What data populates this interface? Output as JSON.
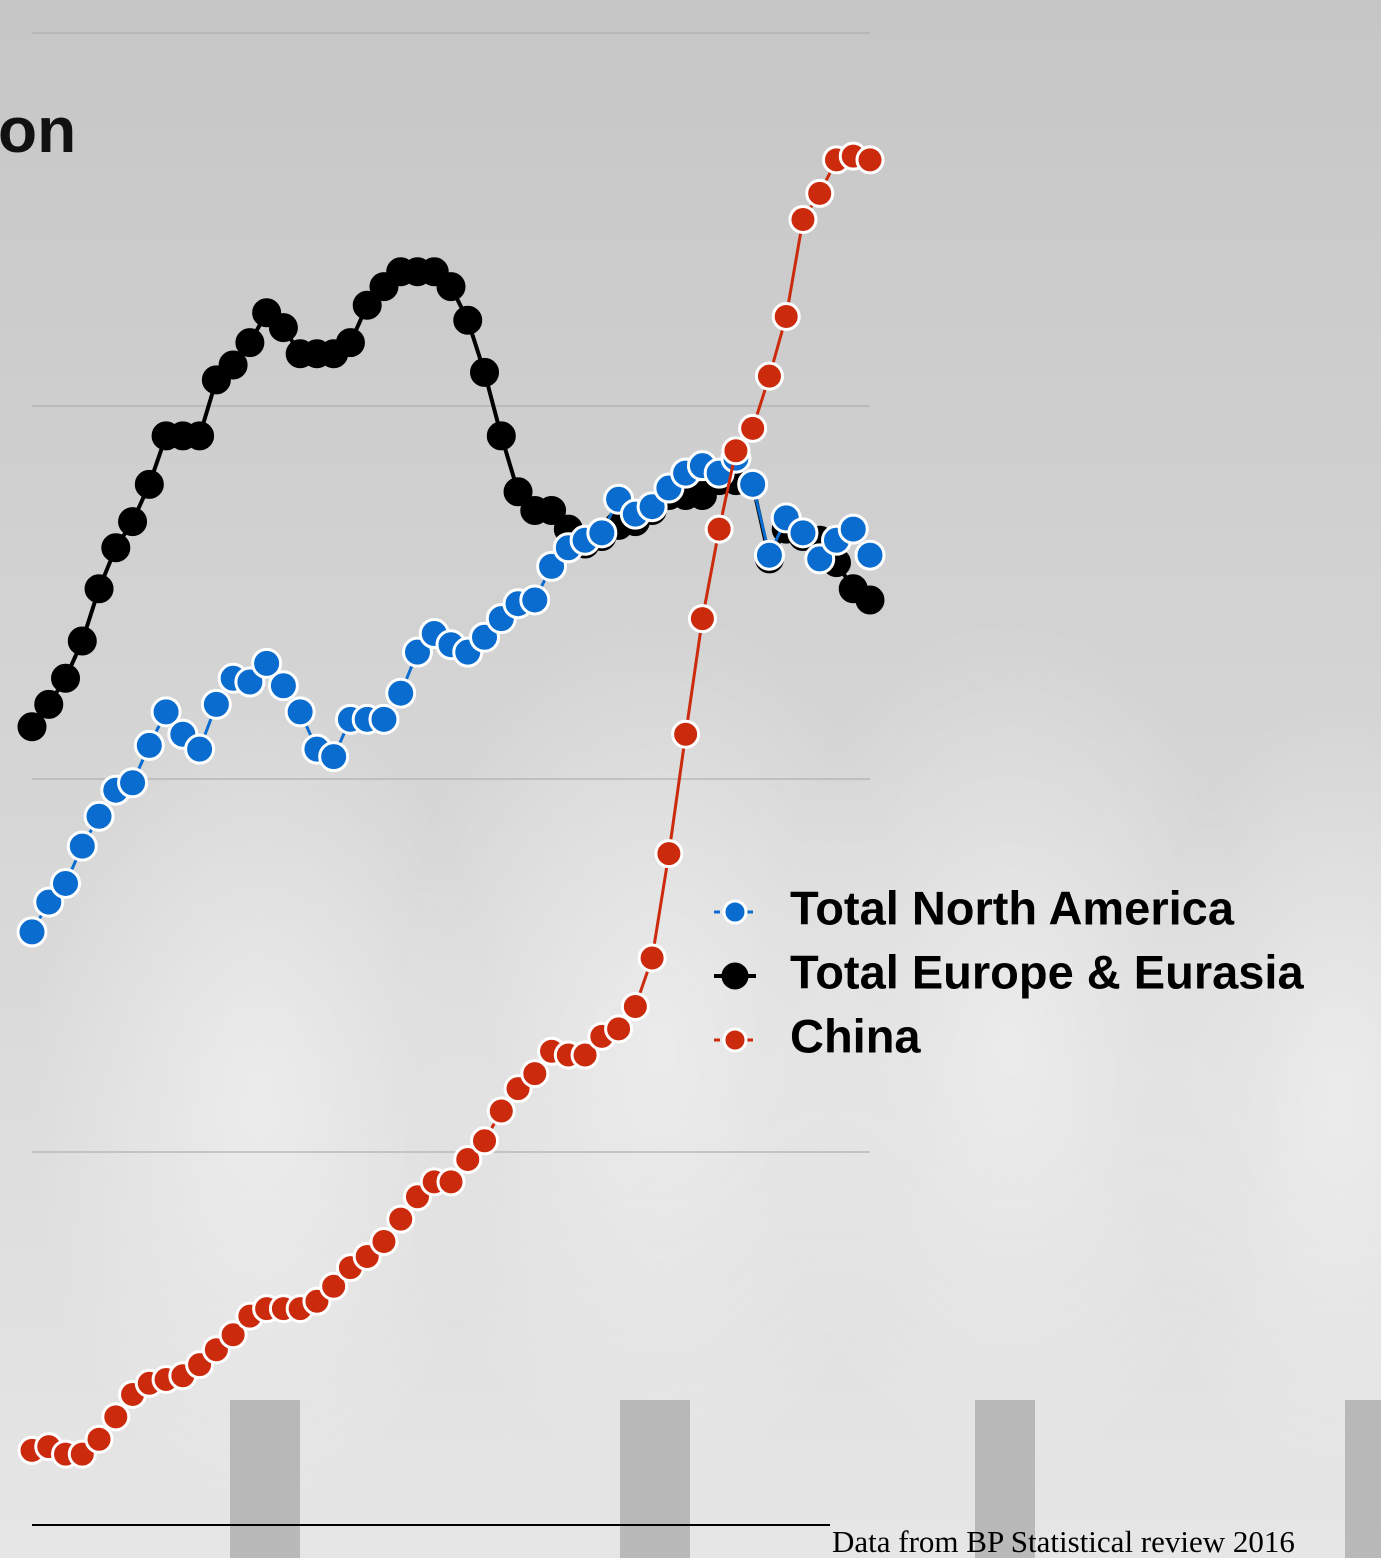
{
  "chart_data": {
    "type": "line",
    "title": "on",
    "source": "Data from BP Statistical review 2016",
    "categories": [
      null,
      null,
      null,
      null,
      null,
      null,
      null,
      null,
      null,
      null,
      null,
      null,
      null,
      null,
      null,
      null,
      null,
      null,
      null,
      null,
      null,
      null,
      null,
      null,
      null,
      null,
      null,
      null,
      null,
      null,
      null,
      null,
      null,
      null,
      null,
      null,
      null,
      null,
      null,
      null,
      null,
      null,
      null,
      null,
      null,
      null,
      null,
      null,
      null,
      null,
      null
    ],
    "ylim": [
      0,
      4
    ],
    "yticks": [
      0,
      1,
      2,
      3,
      4
    ],
    "grid": true,
    "series": [
      {
        "name": "Total North America",
        "color": "#0a6ccf",
        "values": [
          1.59,
          1.67,
          1.72,
          1.82,
          1.9,
          1.97,
          1.99,
          2.09,
          2.18,
          2.12,
          2.08,
          2.2,
          2.27,
          2.26,
          2.31,
          2.25,
          2.18,
          2.08,
          2.06,
          2.16,
          2.16,
          2.16,
          2.23,
          2.34,
          2.39,
          2.36,
          2.34,
          2.38,
          2.43,
          2.47,
          2.48,
          2.57,
          2.62,
          2.64,
          2.66,
          2.75,
          2.71,
          2.73,
          2.78,
          2.82,
          2.84,
          2.82,
          2.86,
          2.79,
          2.6,
          2.7,
          2.66,
          2.59,
          2.64,
          2.67,
          2.6
        ]
      },
      {
        "name": "Total Europe & Eurasia",
        "color": "#000000",
        "values": [
          2.14,
          2.2,
          2.27,
          2.37,
          2.51,
          2.62,
          2.69,
          2.79,
          2.92,
          2.92,
          2.92,
          3.07,
          3.11,
          3.17,
          3.25,
          3.21,
          3.14,
          3.14,
          3.14,
          3.17,
          3.27,
          3.32,
          3.36,
          3.36,
          3.36,
          3.32,
          3.23,
          3.09,
          2.92,
          2.77,
          2.72,
          2.72,
          2.67,
          2.63,
          2.65,
          2.68,
          2.69,
          2.72,
          2.76,
          2.76,
          2.76,
          2.8,
          2.8,
          2.79,
          2.59,
          2.67,
          2.65,
          2.64,
          2.58,
          2.51,
          2.48
        ]
      },
      {
        "name": "China",
        "color": "#cc2a0c",
        "values": [
          0.2,
          0.21,
          0.19,
          0.19,
          0.23,
          0.29,
          0.35,
          0.38,
          0.39,
          0.4,
          0.43,
          0.47,
          0.51,
          0.56,
          0.58,
          0.58,
          0.58,
          0.6,
          0.64,
          0.69,
          0.72,
          0.76,
          0.82,
          0.88,
          0.92,
          0.92,
          0.98,
          1.03,
          1.11,
          1.17,
          1.21,
          1.27,
          1.26,
          1.26,
          1.31,
          1.33,
          1.39,
          1.52,
          1.8,
          2.12,
          2.43,
          2.67,
          2.88,
          2.94,
          3.08,
          3.24,
          3.5,
          3.57,
          3.66,
          3.67,
          3.66
        ]
      }
    ]
  }
}
